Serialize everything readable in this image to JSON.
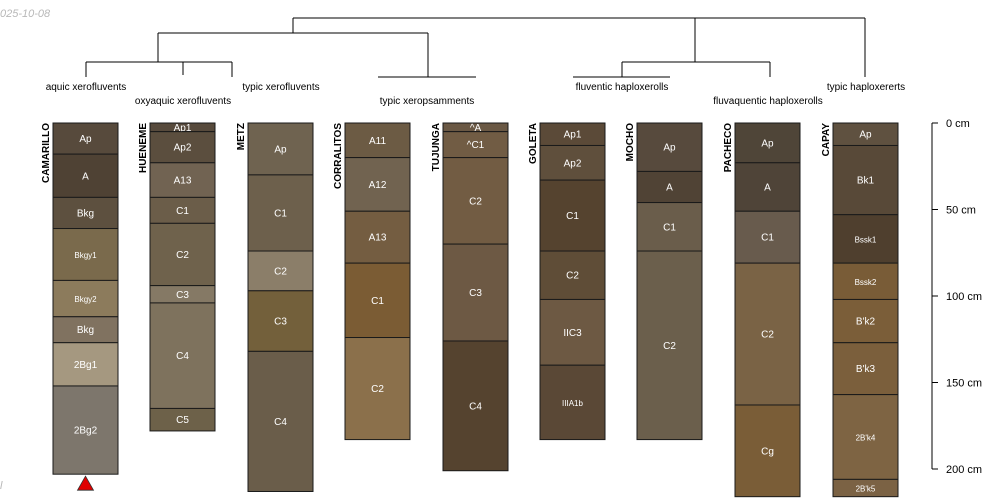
{
  "watermark": {
    "date": "025-10-08",
    "footer": "l"
  },
  "diagram": {
    "type": "soil-profile-sketch",
    "depth_unit": "cm",
    "depth_max": 200,
    "depth_ticks": [
      {
        "depth": 0,
        "label": "0 cm"
      },
      {
        "depth": 50,
        "label": "50 cm"
      },
      {
        "depth": 100,
        "label": "100 cm"
      },
      {
        "depth": 150,
        "label": "150 cm"
      },
      {
        "depth": 200,
        "label": "200 cm"
      }
    ],
    "groups": [
      {
        "id": "g1",
        "label": "aquic xerofluvents"
      },
      {
        "id": "g2",
        "label": "oxyaquic xerofluvents"
      },
      {
        "id": "g3",
        "label": "typic xerofluvents"
      },
      {
        "id": "g4",
        "label": "typic xeropsamments"
      },
      {
        "id": "g5",
        "label": "fluventic haploxerolls"
      },
      {
        "id": "g6",
        "label": "fluvaquentic haploxerolls"
      },
      {
        "id": "g7",
        "label": "typic haploxererts"
      }
    ],
    "profiles": [
      {
        "name": "CAMARILLO",
        "bottom_marker": true,
        "horizons": [
          {
            "name": "Ap",
            "top": 0,
            "bottom": 18,
            "color": "#574a3c"
          },
          {
            "name": "A",
            "top": 18,
            "bottom": 43,
            "color": "#4f4234"
          },
          {
            "name": "Bkg",
            "top": 43,
            "bottom": 61,
            "color": "#5d503f"
          },
          {
            "name": "Bkgy1",
            "top": 61,
            "bottom": 91,
            "color": "#7a6a4c"
          },
          {
            "name": "Bkgy2",
            "top": 91,
            "bottom": 112,
            "color": "#8c7b5c"
          },
          {
            "name": "Bkg",
            "top": 112,
            "bottom": 127,
            "color": "#807260"
          },
          {
            "name": "2Bg1",
            "top": 127,
            "bottom": 152,
            "color": "#a59880"
          },
          {
            "name": "2Bg2",
            "top": 152,
            "bottom": 203,
            "color": "#7d766c"
          }
        ]
      },
      {
        "name": "HUENEME",
        "horizons": [
          {
            "name": "Ap1",
            "top": 0,
            "bottom": 5,
            "color": "#574a3c"
          },
          {
            "name": "Ap2",
            "top": 5,
            "bottom": 23,
            "color": "#5b4e3e"
          },
          {
            "name": "A13",
            "top": 23,
            "bottom": 43,
            "color": "#716352"
          },
          {
            "name": "C1",
            "top": 43,
            "bottom": 58,
            "color": "#6b5d49"
          },
          {
            "name": "C2",
            "top": 58,
            "bottom": 94,
            "color": "#6f624c"
          },
          {
            "name": "C3",
            "top": 94,
            "bottom": 104,
            "color": "#857965"
          },
          {
            "name": "C4",
            "top": 104,
            "bottom": 165,
            "color": "#7e725d"
          },
          {
            "name": "C5",
            "top": 165,
            "bottom": 178,
            "color": "#6d6149"
          }
        ]
      },
      {
        "name": "METZ",
        "horizons": [
          {
            "name": "Ap",
            "top": 0,
            "bottom": 30,
            "color": "#6f6350"
          },
          {
            "name": "C1",
            "top": 30,
            "bottom": 74,
            "color": "#6d604c"
          },
          {
            "name": "C2",
            "top": 74,
            "bottom": 97,
            "color": "#8b7e69"
          },
          {
            "name": "C3",
            "top": 97,
            "bottom": 132,
            "color": "#73603b"
          },
          {
            "name": "C4",
            "top": 132,
            "bottom": 213,
            "color": "#6a5d4a"
          }
        ]
      },
      {
        "name": "CORRALITOS",
        "horizons": [
          {
            "name": "A11",
            "top": 0,
            "bottom": 20,
            "color": "#6c5b44"
          },
          {
            "name": "A12",
            "top": 20,
            "bottom": 51,
            "color": "#716350"
          },
          {
            "name": "A13",
            "top": 51,
            "bottom": 81,
            "color": "#745d41"
          },
          {
            "name": "C1",
            "top": 81,
            "bottom": 124,
            "color": "#7b5c34"
          },
          {
            "name": "C2",
            "top": 124,
            "bottom": 183,
            "color": "#8b704b"
          }
        ]
      },
      {
        "name": "TUJUNGA",
        "horizons": [
          {
            "name": "^A",
            "top": 0,
            "bottom": 5,
            "color": "#6a5844"
          },
          {
            "name": "^C1",
            "top": 5,
            "bottom": 20,
            "color": "#715c44"
          },
          {
            "name": "C2",
            "top": 20,
            "bottom": 70,
            "color": "#725c43"
          },
          {
            "name": "C3",
            "top": 70,
            "bottom": 126,
            "color": "#6d5944"
          },
          {
            "name": "C4",
            "top": 126,
            "bottom": 201,
            "color": "#55432f"
          }
        ]
      },
      {
        "name": "GOLETA",
        "horizons": [
          {
            "name": "Ap1",
            "top": 0,
            "bottom": 13,
            "color": "#5b4a38"
          },
          {
            "name": "Ap2",
            "top": 13,
            "bottom": 33,
            "color": "#5f4f3c"
          },
          {
            "name": "C1",
            "top": 33,
            "bottom": 74,
            "color": "#55432f"
          },
          {
            "name": "C2",
            "top": 74,
            "bottom": 102,
            "color": "#5f4d37"
          },
          {
            "name": "IIC3",
            "top": 102,
            "bottom": 140,
            "color": "#6d5943"
          },
          {
            "name": "IIIA1b",
            "top": 140,
            "bottom": 183,
            "color": "#5a4836"
          }
        ]
      },
      {
        "name": "MOCHO",
        "horizons": [
          {
            "name": "Ap",
            "top": 0,
            "bottom": 28,
            "color": "#574a3d"
          },
          {
            "name": "A",
            "top": 28,
            "bottom": 46,
            "color": "#504335"
          },
          {
            "name": "C1",
            "top": 46,
            "bottom": 74,
            "color": "#6a5d4b"
          },
          {
            "name": "C2",
            "top": 74,
            "bottom": 183,
            "color": "#6b5f4c"
          }
        ]
      },
      {
        "name": "PACHECO",
        "horizons": [
          {
            "name": "Ap",
            "top": 0,
            "bottom": 23,
            "color": "#4f4538"
          },
          {
            "name": "A",
            "top": 23,
            "bottom": 51,
            "color": "#4f4438"
          },
          {
            "name": "C1",
            "top": 51,
            "bottom": 81,
            "color": "#685b4d"
          },
          {
            "name": "C2",
            "top": 81,
            "bottom": 163,
            "color": "#7a6345"
          },
          {
            "name": "Cg",
            "top": 163,
            "bottom": 216,
            "color": "#7a5d37"
          }
        ]
      },
      {
        "name": "CAPAY",
        "horizons": [
          {
            "name": "Ap",
            "top": 0,
            "bottom": 13,
            "color": "#5f5140"
          },
          {
            "name": "Bk1",
            "top": 13,
            "bottom": 53,
            "color": "#584938"
          },
          {
            "name": "Bssk1",
            "top": 53,
            "bottom": 81,
            "color": "#4f3f2e"
          },
          {
            "name": "Bssk2",
            "top": 81,
            "bottom": 102,
            "color": "#795c37"
          },
          {
            "name": "B'k2",
            "top": 102,
            "bottom": 127,
            "color": "#7b5e39"
          },
          {
            "name": "B'k3",
            "top": 127,
            "bottom": 157,
            "color": "#7b5f3c"
          },
          {
            "name": "2B'k4",
            "top": 157,
            "bottom": 206,
            "color": "#7e6443"
          },
          {
            "name": "2B'k5",
            "top": 206,
            "bottom": 216,
            "color": "#7b6244"
          }
        ]
      }
    ]
  }
}
